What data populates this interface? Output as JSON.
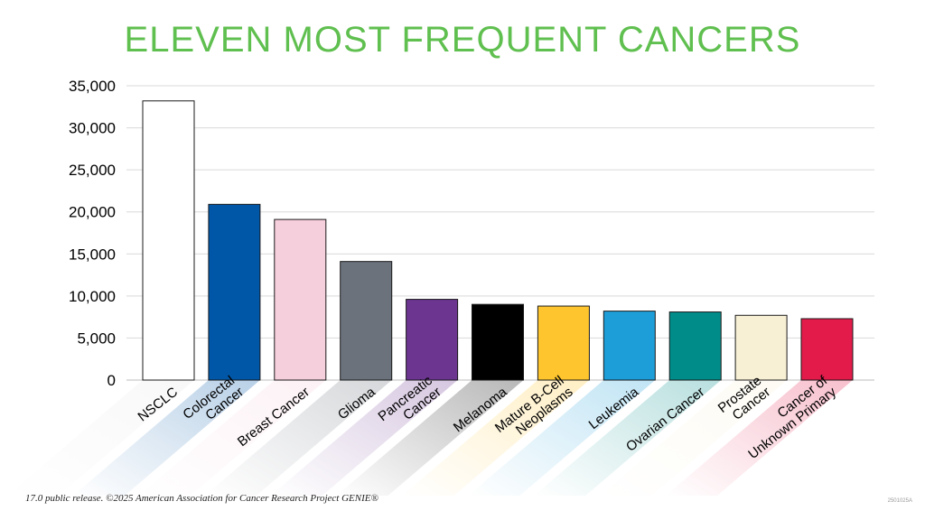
{
  "title": "ELEVEN MOST FREQUENT CANCERS",
  "footnote": "17.0 public release. ©2025 American Association for Cancer Research Project GENIE®",
  "doc_code": "2501025A",
  "chart_data": {
    "type": "bar",
    "title": "ELEVEN MOST FREQUENT CANCERS",
    "xlabel": "",
    "ylabel": "",
    "ylim": [
      0,
      35000
    ],
    "yticks": [
      "0",
      "5,000",
      "10,000",
      "15,000",
      "20,000",
      "25,000",
      "30,000",
      "35,000"
    ],
    "grid": true,
    "categories": [
      [
        "NSCLC"
      ],
      [
        "Colorectal",
        "Cancer"
      ],
      [
        "Breast Cancer"
      ],
      [
        "Glioma"
      ],
      [
        "Pancreatic",
        "Cancer"
      ],
      [
        "Melanoma"
      ],
      [
        "Mature B-Cell",
        "Neoplasms"
      ],
      [
        "Leukemia"
      ],
      [
        "Ovarian Cancer"
      ],
      [
        "Prostate",
        "Cancer"
      ],
      [
        "Cancer of",
        "Unknown Primary"
      ]
    ],
    "values": [
      33200,
      20900,
      19100,
      14100,
      9600,
      9000,
      8800,
      8200,
      8100,
      7700,
      7300
    ],
    "colors": [
      "#ffffff",
      "#0057a8",
      "#f6cfdc",
      "#6b727c",
      "#6b3590",
      "#000000",
      "#fec52e",
      "#1e9ed9",
      "#008d8a",
      "#f8f0d4",
      "#e31b4b"
    ]
  }
}
